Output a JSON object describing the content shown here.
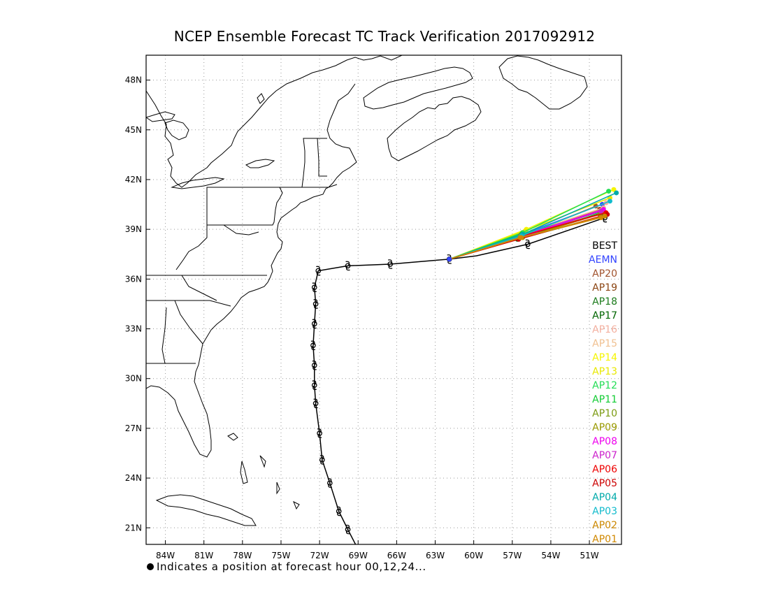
{
  "title": "NCEP Ensemble Forecast TC Track Verification 2017092912",
  "footnote": "Indicates a position at forecast hour 00,12,24...",
  "chart_data": {
    "type": "track-map",
    "title": "NCEP Ensemble Forecast TC Track Verification 2017092912",
    "xlabel": "",
    "ylabel": "",
    "xlim": [
      -85.5,
      -48.5
    ],
    "ylim": [
      20,
      49.5
    ],
    "grid": true,
    "x_ticks": [
      "84W",
      "81W",
      "78W",
      "75W",
      "72W",
      "69W",
      "66W",
      "63W",
      "60W",
      "57W",
      "54W",
      "51W"
    ],
    "x_tick_values": [
      -84,
      -81,
      -78,
      -75,
      -72,
      -69,
      -66,
      -63,
      -60,
      -57,
      -54,
      -51
    ],
    "y_ticks": [
      "21N",
      "24N",
      "27N",
      "30N",
      "33N",
      "36N",
      "39N",
      "42N",
      "45N",
      "48N"
    ],
    "y_tick_values": [
      21,
      24,
      27,
      30,
      33,
      36,
      39,
      42,
      45,
      48
    ],
    "best_track": {
      "name": "BEST",
      "color": "#000000",
      "points": [
        [
          -69.2,
          20.0
        ],
        [
          -69.8,
          20.9
        ],
        [
          -70.5,
          22.0
        ],
        [
          -71.2,
          23.7
        ],
        [
          -71.8,
          25.1
        ],
        [
          -72.0,
          26.7
        ],
        [
          -72.3,
          28.5
        ],
        [
          -72.4,
          29.6
        ],
        [
          -72.4,
          30.8
        ],
        [
          -72.5,
          32.0
        ],
        [
          -72.4,
          33.3
        ],
        [
          -72.3,
          34.5
        ],
        [
          -72.4,
          35.5
        ],
        [
          -72.1,
          36.5
        ],
        [
          -69.8,
          36.8
        ],
        [
          -66.5,
          36.9
        ],
        [
          -61.9,
          37.2
        ],
        [
          -59.8,
          37.4
        ],
        [
          -55.8,
          38.1
        ],
        [
          -49.8,
          39.7
        ]
      ],
      "storm_symbol_points": [
        [
          -69.8,
          20.9
        ],
        [
          -70.5,
          22.0
        ],
        [
          -71.2,
          23.7
        ],
        [
          -71.8,
          25.1
        ],
        [
          -72.0,
          26.7
        ],
        [
          -72.3,
          28.5
        ],
        [
          -72.4,
          29.6
        ],
        [
          -72.4,
          30.8
        ],
        [
          -72.5,
          32.0
        ],
        [
          -72.4,
          33.3
        ],
        [
          -72.3,
          34.5
        ],
        [
          -72.4,
          35.5
        ],
        [
          -72.1,
          36.5
        ],
        [
          -69.8,
          36.8
        ],
        [
          -66.5,
          36.9
        ],
        [
          -61.9,
          37.2
        ],
        [
          -55.8,
          38.1
        ],
        [
          -49.8,
          39.7
        ]
      ]
    },
    "forecast_origin": [
      -61.9,
      37.2
    ],
    "series": [
      {
        "name": "AEMN",
        "color": "#3344ff",
        "mid": [
          -56.2,
          38.7
        ],
        "end": [
          -50.0,
          40.5
        ]
      },
      {
        "name": "AP20",
        "color": "#a0522d",
        "mid": [
          -56.5,
          38.5
        ],
        "end": [
          -50.5,
          40.4
        ]
      },
      {
        "name": "AP19",
        "color": "#8b4513",
        "mid": [
          -56.3,
          38.6
        ],
        "end": [
          -50.2,
          40.2
        ]
      },
      {
        "name": "AP18",
        "color": "#1a7a1a",
        "mid": [
          -56.4,
          38.5
        ],
        "end": [
          -50.0,
          40.0
        ]
      },
      {
        "name": "AP17",
        "color": "#006400",
        "mid": [
          -56.6,
          38.4
        ],
        "end": [
          -49.8,
          39.8
        ]
      },
      {
        "name": "AP16",
        "color": "#f4b0a0",
        "mid": [
          -56.3,
          38.6
        ],
        "end": [
          -49.7,
          40.6
        ]
      },
      {
        "name": "AP15",
        "color": "#f0c090",
        "mid": [
          -56.1,
          38.7
        ],
        "end": [
          -49.9,
          40.3
        ]
      },
      {
        "name": "AP14",
        "color": "#f5f500",
        "mid": [
          -55.9,
          39.0
        ],
        "end": [
          -49.1,
          41.4
        ]
      },
      {
        "name": "AP13",
        "color": "#e8e800",
        "mid": [
          -56.0,
          38.9
        ],
        "end": [
          -49.4,
          40.9
        ]
      },
      {
        "name": "AP12",
        "color": "#22dd55",
        "mid": [
          -56.2,
          38.8
        ],
        "end": [
          -49.5,
          41.3
        ]
      },
      {
        "name": "AP11",
        "color": "#11cc33",
        "mid": [
          -56.3,
          38.7
        ],
        "end": [
          -49.9,
          40.1
        ]
      },
      {
        "name": "AP10",
        "color": "#7a9a10",
        "mid": [
          -56.4,
          38.6
        ],
        "end": [
          -50.2,
          39.9
        ]
      },
      {
        "name": "AP09",
        "color": "#999900",
        "mid": [
          -56.2,
          38.5
        ],
        "end": [
          -49.8,
          40.0
        ]
      },
      {
        "name": "AP08",
        "color": "#ee00ee",
        "mid": [
          -56.3,
          38.6
        ],
        "end": [
          -49.9,
          40.2
        ]
      },
      {
        "name": "AP07",
        "color": "#cc22cc",
        "mid": [
          -56.4,
          38.5
        ],
        "end": [
          -50.1,
          40.1
        ]
      },
      {
        "name": "AP06",
        "color": "#ee0000",
        "mid": [
          -56.3,
          38.6
        ],
        "end": [
          -49.7,
          40.0
        ]
      },
      {
        "name": "AP05",
        "color": "#cc0000",
        "mid": [
          -56.5,
          38.4
        ],
        "end": [
          -49.6,
          39.9
        ]
      },
      {
        "name": "AP04",
        "color": "#00aaaa",
        "mid": [
          -56.2,
          38.7
        ],
        "end": [
          -48.9,
          41.2
        ]
      },
      {
        "name": "AP03",
        "color": "#11bbcc",
        "mid": [
          -56.3,
          38.6
        ],
        "end": [
          -49.4,
          40.7
        ]
      },
      {
        "name": "AP02",
        "color": "#cc8800",
        "mid": [
          -56.4,
          38.5
        ],
        "end": [
          -49.8,
          39.8
        ]
      },
      {
        "name": "AP01",
        "color": "#d08800",
        "mid": [
          -56.3,
          38.5
        ],
        "end": [
          -50.1,
          39.7
        ]
      }
    ]
  }
}
